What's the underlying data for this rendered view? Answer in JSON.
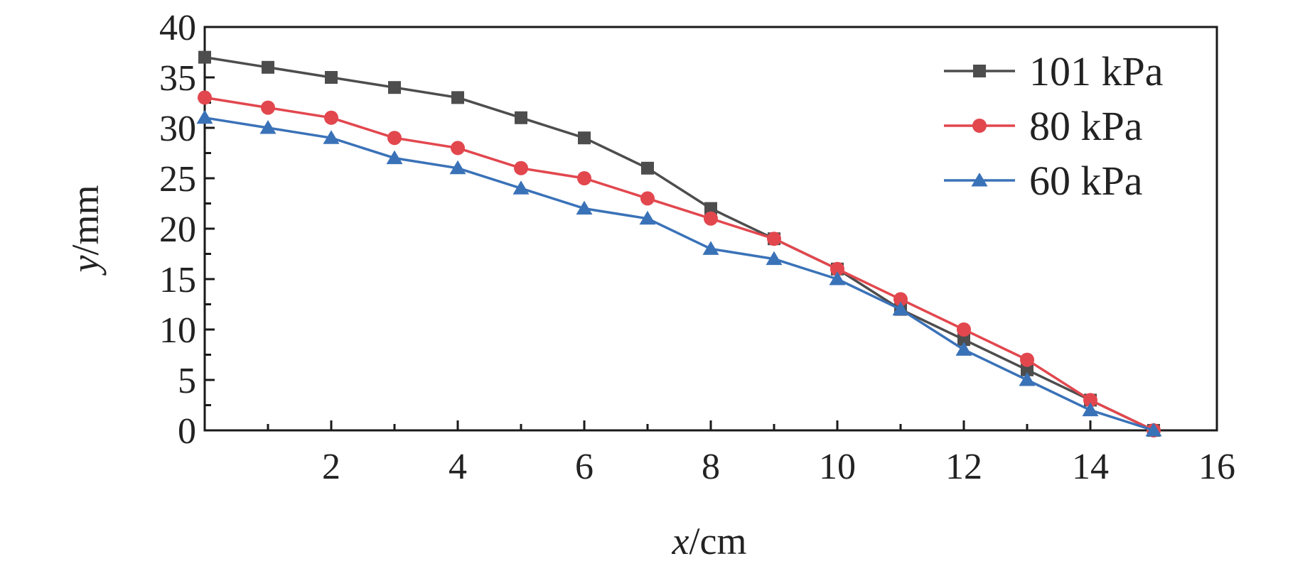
{
  "chart_data": {
    "type": "line",
    "title": "",
    "xlabel": {
      "var": "x",
      "unit": "/cm"
    },
    "ylabel": {
      "var": "y",
      "unit": "/mm"
    },
    "xlim": [
      0,
      16
    ],
    "ylim": [
      0,
      40
    ],
    "xticks": [
      2,
      4,
      6,
      8,
      10,
      12,
      14,
      16
    ],
    "yticks": [
      0,
      5,
      10,
      15,
      20,
      25,
      30,
      35,
      40
    ],
    "grid": false,
    "legend_position": "top-right",
    "x": [
      0,
      1,
      2,
      3,
      4,
      5,
      6,
      7,
      8,
      9,
      10,
      11,
      12,
      13,
      14,
      15
    ],
    "series": [
      {
        "name": "101 kPa",
        "marker": "square",
        "color": "#4d4d4d",
        "values": [
          37,
          36,
          35,
          34,
          33,
          31,
          29,
          26,
          22,
          19,
          16,
          12,
          9,
          6,
          3,
          0
        ]
      },
      {
        "name": "80 kPa",
        "marker": "circle",
        "color": "#e2474e",
        "values": [
          33,
          32,
          31,
          29,
          28,
          26,
          25,
          23,
          21,
          19,
          16,
          13,
          10,
          7,
          3,
          0
        ]
      },
      {
        "name": "60 kPa",
        "marker": "triangle",
        "color": "#3a72b8",
        "values": [
          31,
          30,
          29,
          27,
          26,
          24,
          22,
          21,
          18,
          17,
          15,
          12,
          8,
          5,
          2,
          0
        ]
      }
    ]
  }
}
